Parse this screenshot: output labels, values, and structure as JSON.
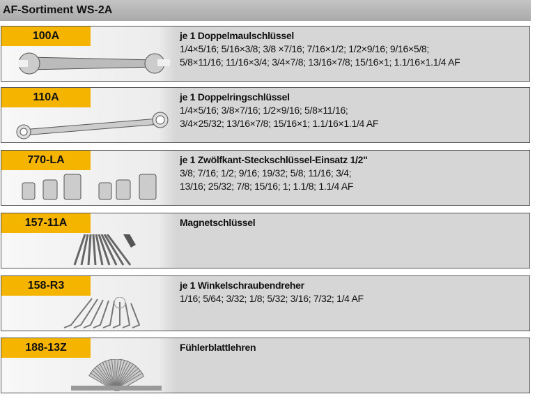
{
  "title": "AF-Sortiment WS-2A",
  "rows": [
    {
      "code": "100A",
      "heading": "je 1 Doppelmaulschlüssel",
      "lines": [
        "1/4×5/16; 5/16×3/8; 3/8 ×7/16; 7/16×1/2; 1/2×9/16; 9/16×5/8;",
        "5/8×11/16; 11/16×3/4; 3/4×7/8; 13/16×7/8; 15/16×1; 1.1/16×1.1/4 AF"
      ],
      "icon": "open-end-wrench-icon"
    },
    {
      "code": "110A",
      "heading": "je 1 Doppelringschlüssel",
      "lines": [
        "1/4×5/16; 3/8×7/16; 1/2×9/16; 5/8×11/16;",
        "3/4×25/32; 13/16×7/8; 15/16×1; 1.1/16×1.1/4 AF"
      ],
      "icon": "ring-wrench-icon"
    },
    {
      "code": "770-LA",
      "heading": "je 1 Zwölfkant-Steckschlüssel-Einsatz 1/2\"",
      "lines": [
        "3/8; 7/16; 1/2; 9/16; 19/32; 5/8; 11/16; 3/4;",
        "13/16; 25/32; 7/8; 15/16; 1; 1.1/8; 1.1/4 AF"
      ],
      "icon": "socket-set-icon"
    },
    {
      "code": "157-11A",
      "heading": "Magnetschlüssel",
      "lines": [],
      "icon": "magnet-key-set-icon"
    },
    {
      "code": "158-R3",
      "heading": "je 1 Winkelschraubendreher",
      "lines": [
        "1/16; 5/64; 3/32; 1/8; 5/32; 3/16; 7/32; 1/4 AF"
      ],
      "icon": "hex-key-set-icon"
    },
    {
      "code": "188-13Z",
      "heading": "Fühlerblattlehren",
      "lines": [],
      "icon": "feeler-gauge-icon"
    }
  ]
}
